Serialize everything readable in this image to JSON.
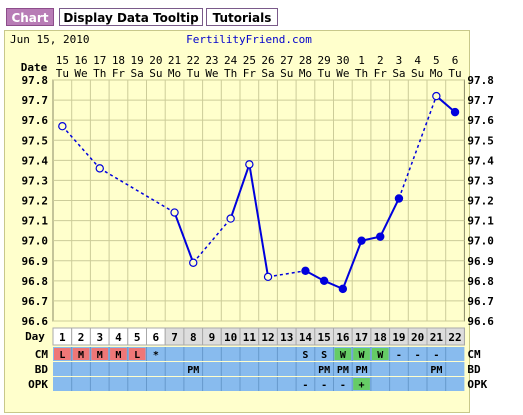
{
  "tabs": [
    {
      "label": "Chart",
      "active": true
    },
    {
      "label": "Display Data Tooltip",
      "active": false
    },
    {
      "label": "Tutorials",
      "active": false
    }
  ],
  "header": {
    "date": "Jun 15, 2010",
    "site": "FertilityFriend.com"
  },
  "colors": {
    "panel": "#ffffcc",
    "grid": "#cccc99",
    "line": "#0000dd",
    "row_blue": "#88bbee",
    "cm_red": "#ee7777",
    "cm_green": "#66cc66",
    "gray_cell": "#dddddd"
  },
  "chart_data": {
    "type": "line",
    "date_row_label": "Date",
    "day_row_label": "Day",
    "date_numbers": [
      "15",
      "16",
      "17",
      "18",
      "19",
      "20",
      "21",
      "22",
      "23",
      "24",
      "25",
      "26",
      "27",
      "28",
      "29",
      "30",
      "1",
      "2",
      "3",
      "4",
      "5",
      "6"
    ],
    "weekdays": [
      "Tu",
      "We",
      "Th",
      "Fr",
      "Sa",
      "Su",
      "Mo",
      "Tu",
      "We",
      "Th",
      "Fr",
      "Sa",
      "Su",
      "Mo",
      "Tu",
      "We",
      "Th",
      "Fr",
      "Sa",
      "Su",
      "Mo",
      "Tu"
    ],
    "cycle_days": [
      "1",
      "2",
      "3",
      "4",
      "5",
      "6",
      "7",
      "8",
      "9",
      "10",
      "11",
      "12",
      "13",
      "14",
      "15",
      "16",
      "17",
      "18",
      "19",
      "20",
      "21",
      "22"
    ],
    "y_ticks": [
      "97.8",
      "97.7",
      "97.6",
      "97.5",
      "97.4",
      "97.3",
      "97.2",
      "97.1",
      "97.0",
      "96.9",
      "96.8",
      "96.7",
      "96.6"
    ],
    "ylim": [
      96.6,
      97.8
    ],
    "temperatures": [
      {
        "day": 1,
        "value": 97.57,
        "marker": "open"
      },
      {
        "day": 3,
        "value": 97.36,
        "marker": "open"
      },
      {
        "day": 7,
        "value": 97.14,
        "marker": "open"
      },
      {
        "day": 8,
        "value": 96.89,
        "marker": "open"
      },
      {
        "day": 10,
        "value": 97.11,
        "marker": "open"
      },
      {
        "day": 11,
        "value": 97.38,
        "marker": "open"
      },
      {
        "day": 12,
        "value": 96.82,
        "marker": "open"
      },
      {
        "day": 14,
        "value": 96.85,
        "marker": "filled"
      },
      {
        "day": 15,
        "value": 96.8,
        "marker": "filled"
      },
      {
        "day": 16,
        "value": 96.76,
        "marker": "filled"
      },
      {
        "day": 17,
        "value": 97.0,
        "marker": "filled"
      },
      {
        "day": 18,
        "value": 97.02,
        "marker": "filled"
      },
      {
        "day": 19,
        "value": 97.21,
        "marker": "filled"
      },
      {
        "day": 21,
        "value": 97.72,
        "marker": "open"
      },
      {
        "day": 22,
        "value": 97.64,
        "marker": "filled"
      }
    ],
    "segments": [
      {
        "from": 1,
        "to": 3,
        "style": "dashed"
      },
      {
        "from": 3,
        "to": 7,
        "style": "dashed"
      },
      {
        "from": 7,
        "to": 8,
        "style": "solid"
      },
      {
        "from": 8,
        "to": 10,
        "style": "dashed"
      },
      {
        "from": 10,
        "to": 11,
        "style": "solid"
      },
      {
        "from": 11,
        "to": 12,
        "style": "solid"
      },
      {
        "from": 12,
        "to": 14,
        "style": "dashed"
      },
      {
        "from": 14,
        "to": 15,
        "style": "solid"
      },
      {
        "from": 15,
        "to": 16,
        "style": "solid"
      },
      {
        "from": 16,
        "to": 17,
        "style": "solid"
      },
      {
        "from": 17,
        "to": 18,
        "style": "solid"
      },
      {
        "from": 18,
        "to": 19,
        "style": "solid"
      },
      {
        "from": 19,
        "to": 21,
        "style": "dashed"
      },
      {
        "from": 21,
        "to": 22,
        "style": "solid"
      }
    ],
    "rows": [
      {
        "label": "CM",
        "bg": "#88bbee",
        "cells": [
          {
            "day": 1,
            "text": "L",
            "bg": "#ee7777"
          },
          {
            "day": 2,
            "text": "M",
            "bg": "#ee7777"
          },
          {
            "day": 3,
            "text": "M",
            "bg": "#ee7777"
          },
          {
            "day": 4,
            "text": "M",
            "bg": "#ee7777"
          },
          {
            "day": 5,
            "text": "L",
            "bg": "#ee7777"
          },
          {
            "day": 6,
            "text": "*",
            "bg": ""
          },
          {
            "day": 14,
            "text": "S",
            "bg": ""
          },
          {
            "day": 15,
            "text": "S",
            "bg": ""
          },
          {
            "day": 16,
            "text": "W",
            "bg": "#66cc66"
          },
          {
            "day": 17,
            "text": "W",
            "bg": "#66cc66"
          },
          {
            "day": 18,
            "text": "W",
            "bg": "#66cc66"
          },
          {
            "day": 19,
            "text": "-",
            "bg": ""
          },
          {
            "day": 20,
            "text": "-",
            "bg": ""
          },
          {
            "day": 21,
            "text": "-",
            "bg": ""
          }
        ]
      },
      {
        "label": "BD",
        "bg": "#88bbee",
        "cells": [
          {
            "day": 8,
            "text": "PM",
            "bg": ""
          },
          {
            "day": 15,
            "text": "PM",
            "bg": ""
          },
          {
            "day": 16,
            "text": "PM",
            "bg": ""
          },
          {
            "day": 17,
            "text": "PM",
            "bg": ""
          },
          {
            "day": 21,
            "text": "PM",
            "bg": ""
          }
        ]
      },
      {
        "label": "OPK",
        "bg": "#88bbee",
        "cells": [
          {
            "day": 14,
            "text": "-",
            "bg": ""
          },
          {
            "day": 15,
            "text": "-",
            "bg": ""
          },
          {
            "day": 16,
            "text": "-",
            "bg": ""
          },
          {
            "day": 17,
            "text": "+",
            "bg": "#66cc66"
          }
        ]
      }
    ]
  }
}
